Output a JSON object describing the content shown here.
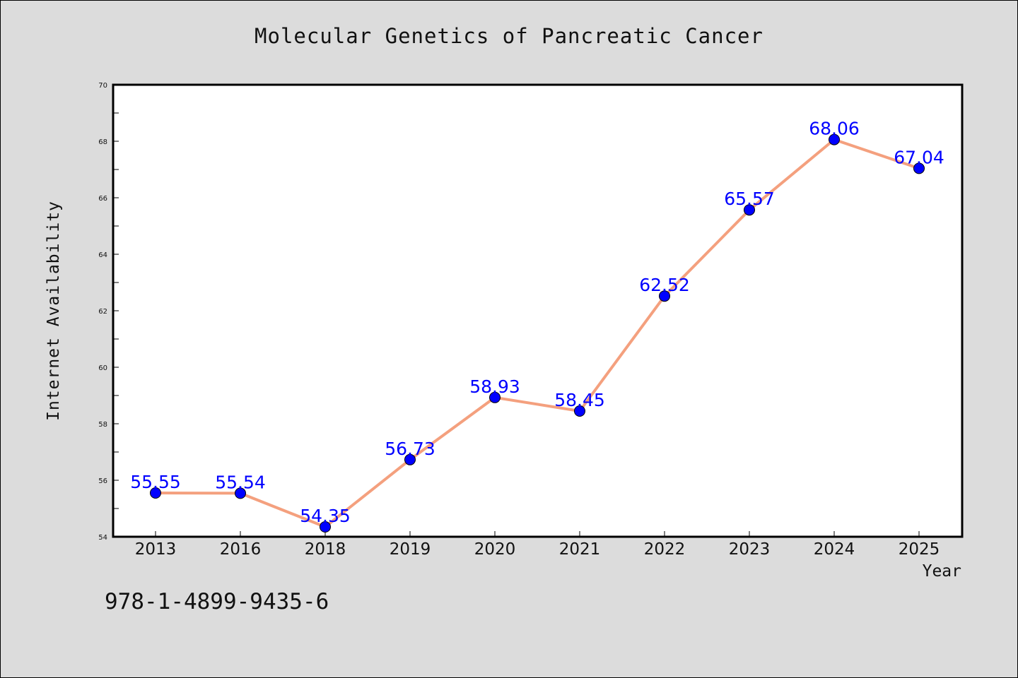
{
  "footer_code": "978-1-4899-9435-6",
  "chart_data": {
    "type": "line",
    "title": "Molecular Genetics of Pancreatic Cancer",
    "xlabel": "Year",
    "ylabel": "Internet Availability",
    "categories": [
      "2013",
      "2016",
      "2018",
      "2019",
      "2020",
      "2021",
      "2022",
      "2023",
      "2024",
      "2025"
    ],
    "values": [
      55.55,
      55.54,
      54.35,
      56.73,
      58.93,
      58.45,
      62.52,
      65.57,
      68.06,
      67.04
    ],
    "data_labels": [
      "55.55",
      "55.54",
      "54.35",
      "56.73",
      "58.93",
      "58.45",
      "62.52",
      "65.57",
      "68.06",
      "67.04"
    ],
    "ylim": [
      54,
      70
    ],
    "yticks": [
      "54",
      "56",
      "58",
      "60",
      "62",
      "64",
      "66",
      "68",
      "70"
    ],
    "grid": false,
    "line_color": "#f4a07e",
    "marker_color": "#0000ff",
    "label_color": "#0000ff"
  }
}
